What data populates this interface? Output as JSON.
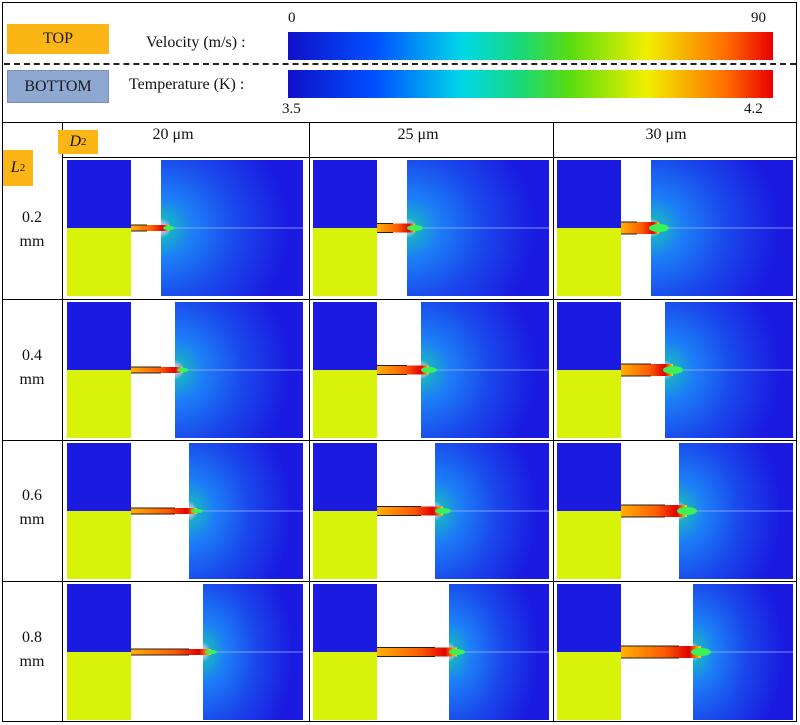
{
  "legend": {
    "top_tag": "TOP",
    "bottom_tag": "BOTTOM",
    "velocity_label": "Velocity (m/s) :",
    "velocity_min": "0",
    "velocity_max": "90",
    "temperature_label": "Temperature (K) :",
    "temperature_min": "3.5",
    "temperature_max": "4.2"
  },
  "grid": {
    "column_param": "D",
    "column_param_sub": "2",
    "row_param": "L",
    "row_param_sub": "2",
    "columns": [
      "20 μm",
      "25 μm",
      "30 μm"
    ],
    "rows": [
      {
        "value": "0.2",
        "unit": "mm"
      },
      {
        "value": "0.4",
        "unit": "mm"
      },
      {
        "value": "0.6",
        "unit": "mm"
      },
      {
        "value": "0.8",
        "unit": "mm"
      }
    ]
  },
  "colors": {
    "top_tag": "#fbb615",
    "bottom_tag": "#8fa8d2",
    "field_blue": "#1a1ae0",
    "field_yellow": "#d8f20a"
  }
}
